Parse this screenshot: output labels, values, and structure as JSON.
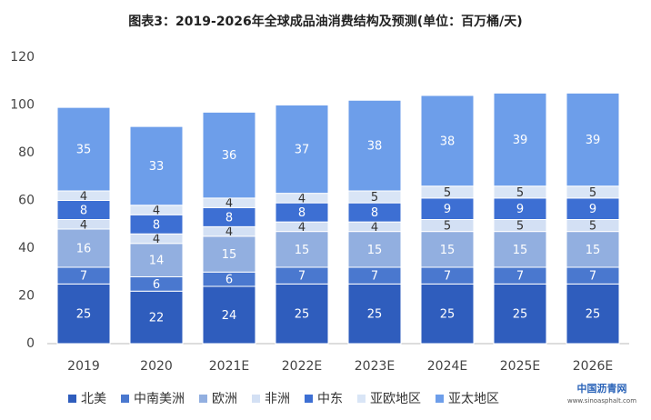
{
  "chart_data": {
    "type": "stacked_bar",
    "title": "图表3：2019-2026年全球成品油消费结构及预测(单位：百万桶/天)",
    "categories": [
      "2019",
      "2020",
      "2021E",
      "2022E",
      "2023E",
      "2024E",
      "2025E",
      "2026E"
    ],
    "series": [
      {
        "name": "北美",
        "color": "#2f5dbd",
        "values": [
          25,
          22,
          24,
          25,
          25,
          25,
          25,
          25
        ]
      },
      {
        "name": "中南美洲",
        "color": "#4a78cf",
        "values": [
          7,
          6,
          6,
          7,
          7,
          7,
          7,
          7
        ]
      },
      {
        "name": "欧洲",
        "color": "#92afe0",
        "values": [
          16,
          14,
          15,
          15,
          15,
          15,
          15,
          15
        ]
      },
      {
        "name": "非洲",
        "color": "#d3e0f4",
        "values": [
          4,
          4,
          4,
          4,
          4,
          5,
          5,
          5
        ]
      },
      {
        "name": "中东",
        "color": "#3d6fd3",
        "values": [
          8,
          8,
          8,
          8,
          8,
          9,
          9,
          9
        ]
      },
      {
        "name": "亚欧地区",
        "color": "#d9e5f6",
        "values": [
          4,
          4,
          4,
          4,
          5,
          5,
          5,
          5
        ]
      },
      {
        "name": "亚太地区",
        "color": "#6d9eea",
        "values": [
          35,
          33,
          36,
          37,
          38,
          38,
          39,
          39
        ]
      }
    ],
    "ylim": [
      0,
      120
    ],
    "yticks": [
      0,
      20,
      40,
      60,
      80,
      100,
      120
    ],
    "grid": false,
    "legend": "bottom",
    "logo": [
      "中国沥青网",
      "www.sinoasphalt.com"
    ]
  }
}
